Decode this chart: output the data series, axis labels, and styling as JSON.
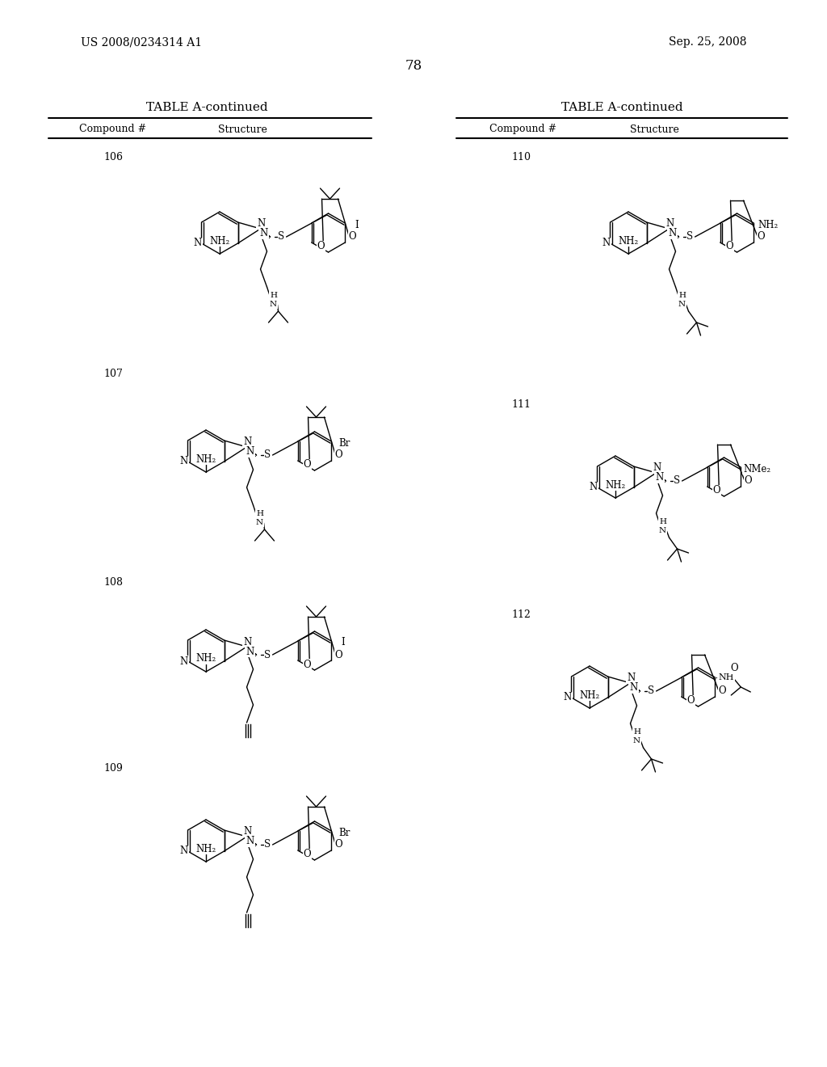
{
  "page_number": "78",
  "patent_number": "US 2008/0234314 A1",
  "patent_date": "Sep. 25, 2008",
  "table_title": "TABLE A-continued",
  "col1_header": "Compound #",
  "col2_header": "Structure",
  "background_color": "#ffffff",
  "text_color": "#000000"
}
